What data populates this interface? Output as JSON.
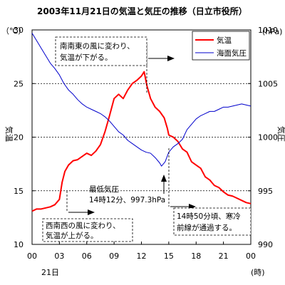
{
  "chart_data": {
    "type": "line",
    "title": "2003年11月21日の気温と気圧の推移（日立市役所）",
    "left_axis": {
      "unit": "（℃）",
      "label": "気温",
      "ylim": [
        10,
        30
      ],
      "ticks": [
        "10",
        "15",
        "20",
        "25",
        "30"
      ]
    },
    "right_axis": {
      "unit": "(hPa)",
      "label": "気圧",
      "ylim": [
        990,
        1010
      ],
      "ticks": [
        "990",
        "995",
        "1000",
        "1005",
        "1010"
      ]
    },
    "x_axis": {
      "unit": "(時)",
      "date_label": "21日",
      "ticks": [
        "00",
        "03",
        "06",
        "09",
        "12",
        "15",
        "18",
        "21",
        "00"
      ],
      "xlim_hours": [
        0,
        24
      ]
    },
    "gridlines": {
      "style": "dotted",
      "values_left": [
        15,
        20,
        25
      ]
    },
    "legend": {
      "placement": "top-right",
      "entries": [
        {
          "name": "気温",
          "color": "#ff0000"
        },
        {
          "name": "海面気圧",
          "color": "#0000cc"
        }
      ]
    },
    "series": [
      {
        "name": "気温",
        "color": "#ff0000",
        "axis": "left",
        "points": [
          [
            0.0,
            13.1
          ],
          [
            0.5,
            13.3
          ],
          [
            1.0,
            13.3
          ],
          [
            1.5,
            13.4
          ],
          [
            2.0,
            13.5
          ],
          [
            2.5,
            13.7
          ],
          [
            3.0,
            14.2
          ],
          [
            3.3,
            15.8
          ],
          [
            3.6,
            16.8
          ],
          [
            4.0,
            17.4
          ],
          [
            4.5,
            17.8
          ],
          [
            5.0,
            17.9
          ],
          [
            5.5,
            18.2
          ],
          [
            6.0,
            18.5
          ],
          [
            6.5,
            18.3
          ],
          [
            7.0,
            18.7
          ],
          [
            7.5,
            19.3
          ],
          [
            8.0,
            20.5
          ],
          [
            8.5,
            22.0
          ],
          [
            9.0,
            23.6
          ],
          [
            9.5,
            24.0
          ],
          [
            10.0,
            23.6
          ],
          [
            10.5,
            24.4
          ],
          [
            11.0,
            25.0
          ],
          [
            11.5,
            25.3
          ],
          [
            12.0,
            25.7
          ],
          [
            12.3,
            26.1
          ],
          [
            12.6,
            24.8
          ],
          [
            13.0,
            23.6
          ],
          [
            13.5,
            22.8
          ],
          [
            14.0,
            22.4
          ],
          [
            14.5,
            21.8
          ],
          [
            14.85,
            20.8
          ],
          [
            15.0,
            20.2
          ],
          [
            15.5,
            20.0
          ],
          [
            16.0,
            19.6
          ],
          [
            16.5,
            18.9
          ],
          [
            17.0,
            18.6
          ],
          [
            17.5,
            17.7
          ],
          [
            18.0,
            17.4
          ],
          [
            18.5,
            17.1
          ],
          [
            19.0,
            16.3
          ],
          [
            19.5,
            16.0
          ],
          [
            20.0,
            15.5
          ],
          [
            20.5,
            15.3
          ],
          [
            21.0,
            14.9
          ],
          [
            21.5,
            14.6
          ],
          [
            22.0,
            14.5
          ],
          [
            22.5,
            14.3
          ],
          [
            23.0,
            14.1
          ],
          [
            23.5,
            13.9
          ],
          [
            24.0,
            13.8
          ]
        ]
      },
      {
        "name": "海面気圧",
        "color": "#0000cc",
        "axis": "right",
        "points": [
          [
            0.0,
            1009.7
          ],
          [
            0.5,
            1009.0
          ],
          [
            1.0,
            1008.3
          ],
          [
            1.5,
            1007.6
          ],
          [
            2.0,
            1006.9
          ],
          [
            2.5,
            1006.4
          ],
          [
            3.0,
            1005.8
          ],
          [
            3.5,
            1005.0
          ],
          [
            4.0,
            1004.4
          ],
          [
            4.5,
            1004.0
          ],
          [
            5.0,
            1003.5
          ],
          [
            5.5,
            1003.1
          ],
          [
            6.0,
            1002.8
          ],
          [
            6.5,
            1002.6
          ],
          [
            7.0,
            1002.4
          ],
          [
            7.5,
            1002.2
          ],
          [
            8.0,
            1001.9
          ],
          [
            8.5,
            1001.5
          ],
          [
            9.0,
            1001.0
          ],
          [
            9.5,
            1000.5
          ],
          [
            10.0,
            1000.2
          ],
          [
            10.5,
            999.7
          ],
          [
            11.0,
            999.4
          ],
          [
            11.5,
            999.1
          ],
          [
            12.0,
            998.8
          ],
          [
            12.5,
            998.6
          ],
          [
            13.0,
            998.5
          ],
          [
            13.5,
            998.1
          ],
          [
            14.0,
            997.6
          ],
          [
            14.2,
            997.3
          ],
          [
            14.6,
            997.7
          ],
          [
            15.0,
            998.6
          ],
          [
            15.5,
            999.1
          ],
          [
            16.0,
            999.4
          ],
          [
            16.5,
            999.8
          ],
          [
            17.0,
            1000.7
          ],
          [
            17.5,
            1001.2
          ],
          [
            18.0,
            1001.7
          ],
          [
            18.5,
            1002.0
          ],
          [
            19.0,
            1002.2
          ],
          [
            19.5,
            1002.4
          ],
          [
            20.0,
            1002.4
          ],
          [
            20.5,
            1002.6
          ],
          [
            21.0,
            1002.8
          ],
          [
            21.5,
            1002.8
          ],
          [
            22.0,
            1002.9
          ],
          [
            22.5,
            1003.0
          ],
          [
            23.0,
            1003.1
          ],
          [
            23.5,
            1003.0
          ],
          [
            24.0,
            1002.9
          ]
        ]
      }
    ],
    "annotations": [
      {
        "id": "ann-top",
        "lines": [
          "南南東の風に変わり、",
          "気温が下がる。"
        ],
        "boxed": true,
        "dashed": true,
        "arrow": "right"
      },
      {
        "id": "ann-bottom-left",
        "lines": [
          "西南西の風に変わり、",
          "気温が上がる。"
        ],
        "boxed": true,
        "dashed": true,
        "arrow": "right"
      },
      {
        "id": "ann-bottom-right",
        "lines": [
          "14時50分頃、寒冷",
          "前線が通過する。"
        ],
        "boxed": true,
        "dashed": true,
        "arrow": "right"
      },
      {
        "id": "ann-min-pressure",
        "lines": [
          "最低気圧",
          "14時12分、997.3hPa"
        ],
        "boxed": false,
        "dashed": false,
        "arrow": "up"
      }
    ]
  }
}
